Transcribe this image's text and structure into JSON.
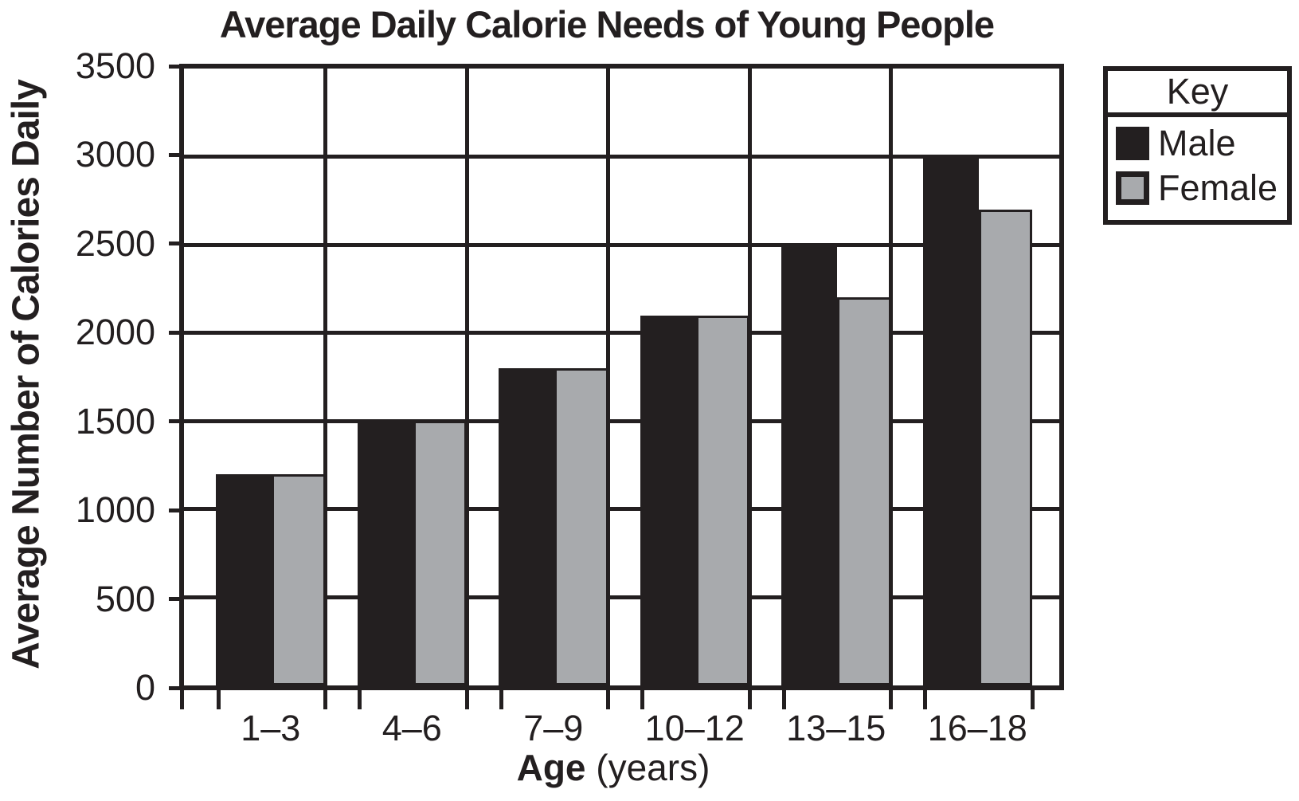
{
  "page": {
    "background": "#ffffff",
    "ink_color": "#231f20"
  },
  "chart_data": {
    "type": "bar",
    "title": "Average Daily Calorie Needs of Young People",
    "ylabel": "Average Number of Calories Daily",
    "xlabel": "Age (years)",
    "xlabel_bold_part": "Age",
    "xlabel_regular_part": " (years)",
    "categories": [
      "1–3",
      "4–6",
      "7–9",
      "10–12",
      "13–15",
      "16–18"
    ],
    "series": [
      {
        "name": "Male",
        "color": "#231f20",
        "values": [
          1200,
          1500,
          1800,
          2100,
          2500,
          3000
        ]
      },
      {
        "name": "Female",
        "color": "#a8aaad",
        "swatch_border": "#231f20",
        "values": [
          1200,
          1500,
          1800,
          2100,
          2200,
          2700
        ]
      }
    ],
    "ylim": [
      0,
      3500
    ],
    "ytick_step": 500,
    "ytick_labels": [
      "3500",
      "3000",
      "2500",
      "2000",
      "1500",
      "1000",
      "500",
      "0"
    ],
    "grid": true,
    "legend": {
      "title": "Key",
      "position": "top-right-outside",
      "entries": [
        "Male",
        "Female"
      ]
    }
  }
}
